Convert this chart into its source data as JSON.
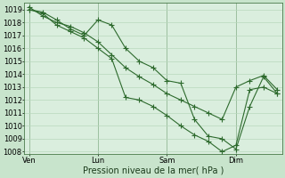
{
  "xlabel": "Pression niveau de la mer( hPa )",
  "bg_color": "#c8e4cc",
  "plot_bg_color": "#daeede",
  "line_color": "#2d6a2d",
  "grid_color": "#b8d8bc",
  "ylim": [
    1008,
    1019.5
  ],
  "yticks": [
    1008,
    1009,
    1010,
    1011,
    1012,
    1013,
    1014,
    1015,
    1016,
    1017,
    1018,
    1019
  ],
  "xtick_labels": [
    "Ven",
    "Lun",
    "Sam",
    "Dim"
  ],
  "xtick_positions": [
    0,
    30,
    60,
    90
  ],
  "xlim": [
    0,
    108
  ],
  "series1_x": [
    0,
    6,
    12,
    18,
    24,
    30,
    36,
    42,
    48,
    54,
    60,
    66,
    72,
    78,
    84,
    90,
    96,
    102,
    108
  ],
  "series1_y": [
    1019.0,
    1018.8,
    1018.2,
    1017.5,
    1017.0,
    1018.2,
    1017.8,
    1016.0,
    1015.0,
    1014.5,
    1013.5,
    1013.3,
    1010.5,
    1009.2,
    1009.0,
    1008.2,
    1011.5,
    1013.8,
    1012.5
  ],
  "series2_x": [
    0,
    6,
    12,
    18,
    24,
    30,
    36,
    42,
    48,
    54,
    60,
    66,
    72,
    78,
    84,
    90,
    96,
    102,
    108
  ],
  "series2_y": [
    1019.2,
    1018.5,
    1018.0,
    1017.7,
    1017.2,
    1016.5,
    1015.5,
    1014.5,
    1013.8,
    1013.2,
    1012.5,
    1012.0,
    1011.5,
    1011.0,
    1010.5,
    1013.0,
    1013.5,
    1013.9,
    1012.8
  ],
  "series3_x": [
    0,
    6,
    12,
    18,
    24,
    30,
    36,
    42,
    48,
    54,
    60,
    66,
    72,
    78,
    84,
    90,
    96,
    102,
    108
  ],
  "series3_y": [
    1019.0,
    1018.7,
    1017.8,
    1017.3,
    1016.8,
    1016.0,
    1015.2,
    1012.2,
    1012.0,
    1011.5,
    1010.8,
    1010.0,
    1009.3,
    1008.8,
    1008.0,
    1008.5,
    1012.8,
    1013.0,
    1012.5
  ],
  "vlines_x": [
    0,
    30,
    60,
    90
  ],
  "font_size": 6,
  "xlabel_fontsize": 7,
  "marker_size": 2.0,
  "line_width": 0.8
}
